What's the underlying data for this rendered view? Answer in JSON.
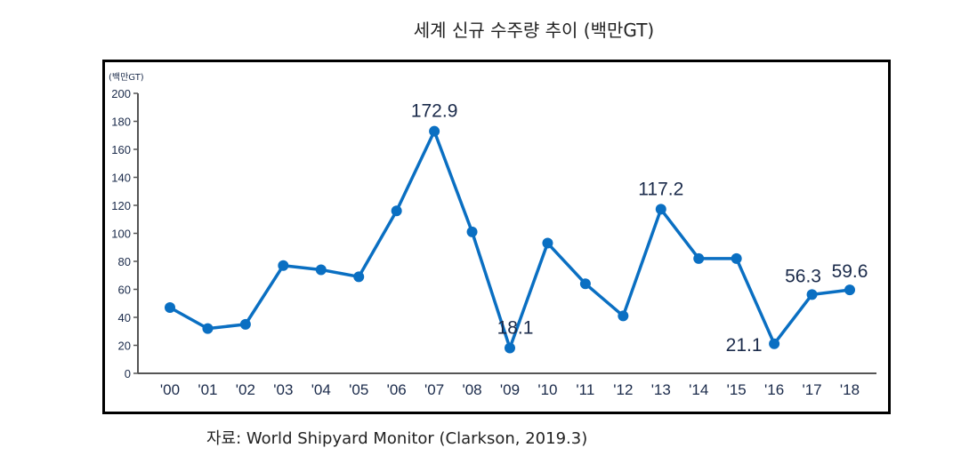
{
  "chart_data": {
    "type": "line",
    "title": "세계 신규 수주량 추이 (백만GT)",
    "ylabel": "(백만GT)",
    "xlabel": "",
    "ylim": [
      0,
      200
    ],
    "yticks": [
      "0",
      "20",
      "40",
      "60",
      "80",
      "100",
      "120",
      "140",
      "160",
      "180",
      "200"
    ],
    "categories": [
      "'00",
      "'01",
      "'02",
      "'03",
      "'04",
      "'05",
      "'06",
      "'07",
      "'08",
      "'09",
      "'10",
      "'11",
      "'12",
      "'13",
      "'14",
      "'15",
      "'16",
      "'17",
      "'18"
    ],
    "series": [
      {
        "name": "신규 수주량",
        "color": "#0a6fc2",
        "values": [
          47,
          32,
          35,
          77,
          74,
          69,
          116,
          172.9,
          101,
          18.1,
          93,
          64,
          41,
          117.2,
          82,
          82,
          21.1,
          56.3,
          59.6
        ]
      }
    ],
    "data_labels": [
      {
        "index": 7,
        "text": "172.9"
      },
      {
        "index": 9,
        "text": "18.1"
      },
      {
        "index": 13,
        "text": "117.2"
      },
      {
        "index": 16,
        "text": "21.1"
      },
      {
        "index": 17,
        "text": "56.3"
      },
      {
        "index": 18,
        "text": "59.6"
      }
    ],
    "grid": false,
    "source": "자료: World Shipyard Monitor (Clarkson, 2019.3)"
  }
}
